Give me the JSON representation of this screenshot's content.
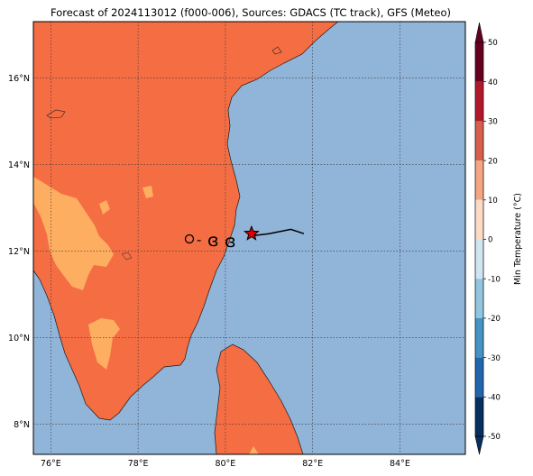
{
  "title": "Forecast of 2024113012 (f000-006), Sources: GDACS (TC track), GFS (Meteo)",
  "map": {
    "lon_ticks": [
      {
        "value": 76,
        "label": "76°E"
      },
      {
        "value": 78,
        "label": "78°E"
      },
      {
        "value": 80,
        "label": "80°E"
      },
      {
        "value": 82,
        "label": "82°E"
      },
      {
        "value": 84,
        "label": "84°E"
      }
    ],
    "lat_ticks": [
      {
        "value": 8,
        "label": "8°N"
      },
      {
        "value": 10,
        "label": "10°N"
      },
      {
        "value": 12,
        "label": "12°N"
      },
      {
        "value": 14,
        "label": "14°N"
      },
      {
        "value": 16,
        "label": "16°N"
      }
    ],
    "lon_range": [
      75.6,
      85.5
    ],
    "lat_range": [
      7.3,
      17.3
    ],
    "gridlines": true,
    "land_color": "#f46d43",
    "warm_color": "#fdae61",
    "ocean_color": "#91b4d9"
  },
  "track": {
    "points": [
      {
        "lon": 80.6,
        "lat": 12.35
      },
      {
        "lon": 81.0,
        "lat": 12.4
      },
      {
        "lon": 81.5,
        "lat": 12.5
      },
      {
        "lon": 81.8,
        "lat": 12.4
      }
    ],
    "current_position": {
      "lon": 80.6,
      "lat": 12.4
    },
    "marker_color": "#dd0000"
  },
  "legend_symbols": {
    "circle": "o",
    "dash": "-",
    "cyclone_glyph": "ɞ"
  },
  "colorbar": {
    "label": "Min Temperature (°C)",
    "ticks": [
      50,
      40,
      30,
      20,
      10,
      0,
      -10,
      -20,
      -30,
      -40,
      -50
    ],
    "colors": [
      "#67001f",
      "#b2182b",
      "#d6604d",
      "#f4a582",
      "#fddbc7",
      "#f7f7f7",
      "#d1e5f0",
      "#92c5de",
      "#4393c3",
      "#2166ac",
      "#053061"
    ],
    "range": [
      -50,
      50
    ]
  }
}
